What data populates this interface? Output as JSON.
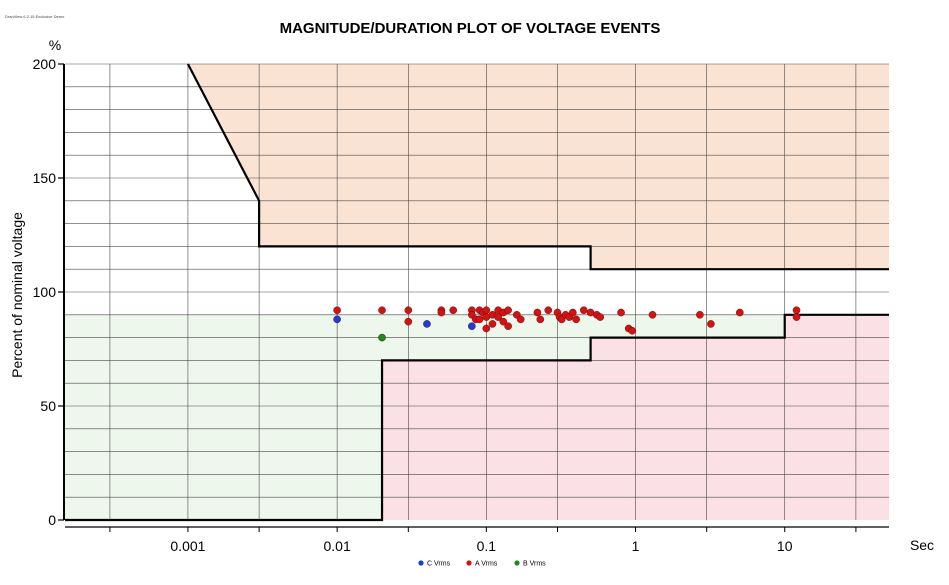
{
  "version_label": "DranView 6.2.15 Exclusive Demo",
  "chart_data": {
    "type": "scatter",
    "title": "MAGNITUDE/DURATION PLOT OF VOLTAGE EVENTS",
    "ylabel": "Percent of nominal voltage",
    "yunit": "%",
    "xunit": "Sec",
    "x_scale": "log",
    "xlim": [
      0.00015,
      50
    ],
    "ylim": [
      0,
      200
    ],
    "x_ticks": [
      {
        "value": 0.001,
        "label": "0.001"
      },
      {
        "value": 0.01,
        "label": "0.01"
      },
      {
        "value": 0.1,
        "label": "0.1"
      },
      {
        "value": 1,
        "label": "1"
      },
      {
        "value": 10,
        "label": "10"
      }
    ],
    "y_ticks": [
      {
        "value": 0,
        "label": "0"
      },
      {
        "value": 50,
        "label": "50"
      },
      {
        "value": 100,
        "label": "100"
      },
      {
        "value": 150,
        "label": "150"
      },
      {
        "value": 200,
        "label": "200"
      }
    ],
    "grid": true,
    "legend_position": "bottom-center",
    "regions": [
      {
        "name": "overvoltage",
        "color": "#fbe3d3"
      },
      {
        "name": "acceptable",
        "color": "#edf7ec"
      },
      {
        "name": "undervoltage",
        "color": "#fbe0e5"
      }
    ],
    "upper_curve": [
      [
        0.001,
        200
      ],
      [
        0.003,
        140
      ],
      [
        0.003,
        120
      ],
      [
        0.5,
        120
      ],
      [
        0.5,
        110
      ],
      [
        50,
        110
      ]
    ],
    "lower_curve": [
      [
        0.00015,
        0
      ],
      [
        0.02,
        0
      ],
      [
        0.02,
        70
      ],
      [
        0.5,
        70
      ],
      [
        0.5,
        80
      ],
      [
        10,
        80
      ],
      [
        10,
        90
      ],
      [
        50,
        90
      ]
    ],
    "series": [
      {
        "name": "C Vrms",
        "color": "#1a3fd6",
        "points": [
          [
            0.01,
            88
          ],
          [
            0.04,
            86
          ],
          [
            0.08,
            85
          ]
        ]
      },
      {
        "name": "A Vrms",
        "color": "#d01414",
        "points": [
          [
            0.01,
            92
          ],
          [
            0.02,
            92
          ],
          [
            0.03,
            92
          ],
          [
            0.03,
            87
          ],
          [
            0.05,
            92
          ],
          [
            0.05,
            91
          ],
          [
            0.06,
            92
          ],
          [
            0.08,
            92
          ],
          [
            0.08,
            90
          ],
          [
            0.085,
            88
          ],
          [
            0.09,
            92
          ],
          [
            0.09,
            88
          ],
          [
            0.095,
            91
          ],
          [
            0.1,
            92
          ],
          [
            0.1,
            89
          ],
          [
            0.1,
            84
          ],
          [
            0.11,
            90
          ],
          [
            0.11,
            86
          ],
          [
            0.12,
            92
          ],
          [
            0.12,
            89
          ],
          [
            0.13,
            91
          ],
          [
            0.13,
            87
          ],
          [
            0.14,
            92
          ],
          [
            0.14,
            85
          ],
          [
            0.16,
            90
          ],
          [
            0.17,
            88
          ],
          [
            0.22,
            91
          ],
          [
            0.23,
            88
          ],
          [
            0.26,
            92
          ],
          [
            0.3,
            91
          ],
          [
            0.31,
            89
          ],
          [
            0.32,
            88
          ],
          [
            0.34,
            90
          ],
          [
            0.36,
            89
          ],
          [
            0.38,
            91
          ],
          [
            0.4,
            88
          ],
          [
            0.45,
            92
          ],
          [
            0.5,
            91
          ],
          [
            0.55,
            90
          ],
          [
            0.58,
            89
          ],
          [
            0.8,
            91
          ],
          [
            0.9,
            84
          ],
          [
            0.95,
            83
          ],
          [
            1.3,
            90
          ],
          [
            2.7,
            90
          ],
          [
            3.2,
            86
          ],
          [
            5,
            91
          ],
          [
            12,
            92
          ],
          [
            12,
            89
          ]
        ]
      },
      {
        "name": "B Vrms",
        "color": "#1e8a1e",
        "points": [
          [
            0.02,
            80
          ]
        ]
      }
    ]
  }
}
